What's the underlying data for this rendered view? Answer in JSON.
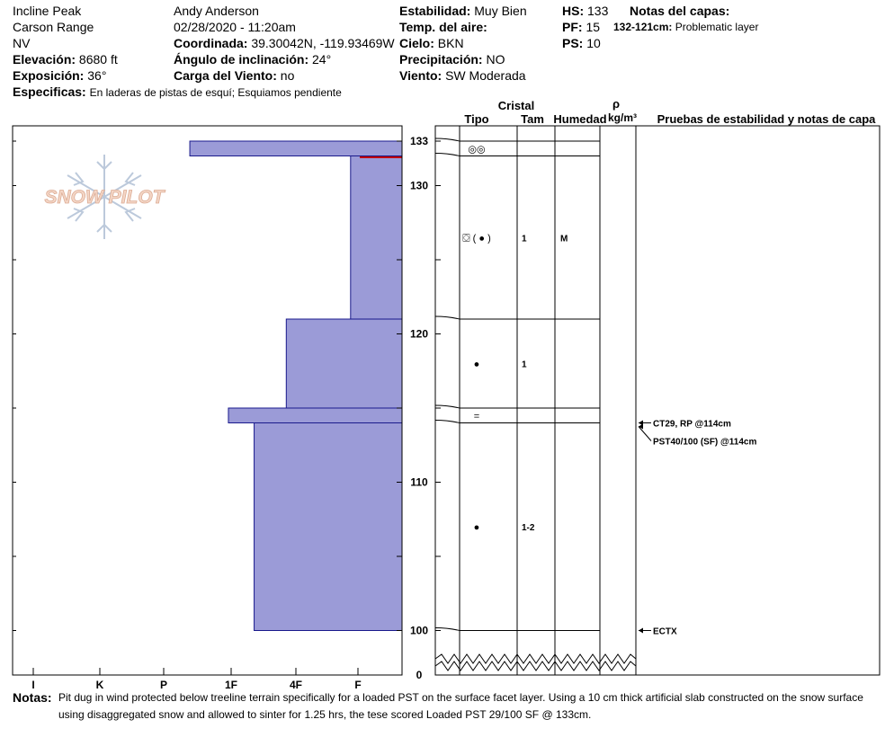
{
  "header": {
    "location": "Incline Peak",
    "range": "Carson Range",
    "state": "NV",
    "elevation_label": "Elevación:",
    "elevation_value": "8680 ft",
    "aspect_label": "Exposición:",
    "aspect_value": "36°",
    "specifics_label": "Especificas:",
    "specifics_value": "En laderas de pistas de esquí; Esquiamos pendiente",
    "observer": "Andy Anderson",
    "datetime": "02/28/2020 - 11:20am",
    "coord_label": "Coordinada:",
    "coord_value": "39.30042N, -119.93469W",
    "incline_label": "Ángulo de inclinación:",
    "incline_value": "24°",
    "wind_load_label": "Carga del Viento:",
    "wind_load_value": "no",
    "stability_label": "Estabilidad:",
    "stability_value": "Muy Bien",
    "air_temp_label": "Temp. del aire:",
    "air_temp_value": "",
    "sky_label": "Cielo:",
    "sky_value": "BKN",
    "precip_label": "Precipitación:",
    "precip_value": "NO",
    "wind_label": "Viento:",
    "wind_value": "SW Moderada",
    "hs_label": "HS:",
    "hs_value": "133",
    "pf_label": "PF:",
    "pf_value": "15",
    "ps_label": "PS:",
    "ps_value": "10",
    "layer_notes_label": "Notas del capas:",
    "layer_note_range": "132-121cm:",
    "layer_note_text": "Problematic layer"
  },
  "logo_text": "SNOW PILOT",
  "columns": {
    "crystal": "Cristal",
    "type": "Tipo",
    "size": "Tam",
    "moisture": "Humedad",
    "density_symbol": "ρ",
    "density_unit": "kg/m³",
    "tests": "Pruebas de estabilidad y notas de capa"
  },
  "colors": {
    "hardness_fill": "#9b9bd7",
    "hardness_stroke": "#1a1a8c",
    "marker": "#c00000"
  },
  "chart_data": {
    "type": "snow_profile",
    "y_axis": {
      "min": 0,
      "max": 135,
      "ticks": [
        133,
        130,
        120,
        110,
        100,
        0
      ]
    },
    "hardness_axis": [
      "I",
      "K",
      "P",
      "1F",
      "4F",
      "F"
    ],
    "hardness_layers": [
      {
        "top": 133,
        "bottom": 132,
        "hardness": 3.3
      },
      {
        "top": 132,
        "bottom": 121,
        "hardness": 0.8
      },
      {
        "top": 121,
        "bottom": 115,
        "hardness": 1.8
      },
      {
        "top": 115,
        "bottom": 114,
        "hardness": 2.7
      },
      {
        "top": 114,
        "bottom": 100,
        "hardness": 2.3
      }
    ],
    "layer_boundaries": [
      133,
      132,
      121,
      115,
      114,
      100
    ],
    "layers": [
      {
        "mid": 132.5,
        "type": "◎◎",
        "size": "",
        "moisture": ""
      },
      {
        "mid": 126.5,
        "type": "⛋ ( ● )",
        "size": "1",
        "moisture": "M"
      },
      {
        "mid": 118,
        "type": "●",
        "size": "1",
        "moisture": ""
      },
      {
        "mid": 114.5,
        "type": "=",
        "size": "",
        "moisture": ""
      },
      {
        "mid": 107,
        "type": "●",
        "size": "1-2",
        "moisture": ""
      }
    ],
    "tests": [
      {
        "depth": 114,
        "label": "CT29, RP @114cm"
      },
      {
        "depth": 114,
        "label": "PST40/100 (SF) @114cm"
      },
      {
        "depth": 100,
        "label": "ECTX"
      }
    ]
  },
  "notes": {
    "label": "Notas:",
    "text": "Pit dug in wind protected below treeline terrain specifically for a loaded PST on the surface facet layer. Using a 10 cm thick artificial slab constructed on the snow surface using disaggregated snow and allowed to sinter for 1.25 hrs, the tese scored Loaded PST 29/100 SF @ 133cm."
  }
}
